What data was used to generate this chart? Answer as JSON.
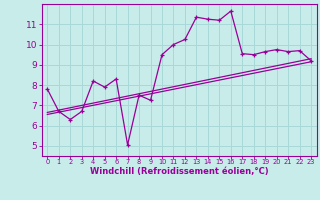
{
  "xlabel": "Windchill (Refroidissement éolien,°C)",
  "bg_color": "#c8ecea",
  "grid_color": "#a8d8d8",
  "line_color": "#990099",
  "xlim": [
    -0.5,
    23.5
  ],
  "ylim": [
    4.5,
    12.0
  ],
  "yticks": [
    5,
    6,
    7,
    8,
    9,
    10,
    11
  ],
  "xticks": [
    0,
    1,
    2,
    3,
    4,
    5,
    6,
    7,
    8,
    9,
    10,
    11,
    12,
    13,
    14,
    15,
    16,
    17,
    18,
    19,
    20,
    21,
    22,
    23
  ],
  "main_x": [
    0,
    1,
    2,
    3,
    4,
    5,
    6,
    7,
    8,
    9,
    10,
    11,
    12,
    13,
    14,
    15,
    16,
    17,
    18,
    19,
    20,
    21,
    22,
    23
  ],
  "main_y": [
    7.8,
    6.7,
    6.3,
    6.7,
    8.2,
    7.9,
    8.3,
    5.05,
    7.5,
    7.25,
    9.5,
    10.0,
    10.25,
    11.35,
    11.25,
    11.2,
    11.65,
    9.55,
    9.5,
    9.65,
    9.75,
    9.65,
    9.7,
    9.2
  ],
  "trend1_x": [
    0,
    23
  ],
  "trend1_y": [
    6.55,
    9.15
  ],
  "trend2_x": [
    0,
    23
  ],
  "trend2_y": [
    6.65,
    9.3
  ]
}
